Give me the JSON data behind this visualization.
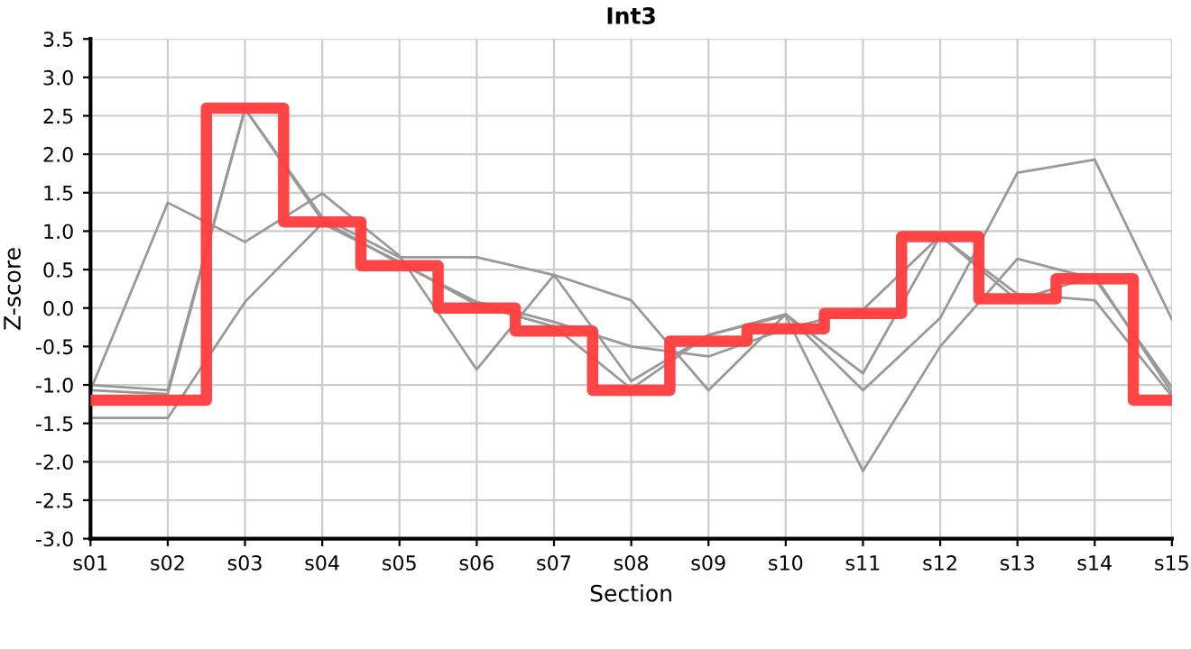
{
  "chart_data": {
    "type": "line",
    "title": "Int3",
    "xlabel": "Section",
    "ylabel": "Z-score",
    "categories": [
      "s01",
      "s02",
      "s03",
      "s04",
      "s05",
      "s06",
      "s07",
      "s08",
      "s09",
      "s10",
      "s11",
      "s12",
      "s13",
      "s14",
      "s15"
    ],
    "series": [
      {
        "color": "#999999",
        "values": [
          -1.07,
          1.37,
          0.86,
          1.49,
          0.68,
          -0.8,
          0.43,
          -0.95,
          -0.35,
          -0.08,
          -0.85,
          0.94,
          0.18,
          0.1,
          -1.15
        ]
      },
      {
        "color": "#999999",
        "values": [
          -1.0,
          -1.07,
          2.59,
          1.18,
          0.66,
          0.66,
          0.43,
          0.1,
          -1.07,
          -0.08,
          -1.07,
          -0.13,
          1.76,
          1.93,
          -0.15
        ]
      },
      {
        "color": "#999999",
        "values": [
          -1.07,
          -1.12,
          2.59,
          1.14,
          0.58,
          0.08,
          -0.18,
          -0.5,
          -0.63,
          -0.27,
          -0.02,
          0.94,
          0.1,
          0.42,
          -1.1
        ]
      },
      {
        "color": "#999999",
        "values": [
          -1.43,
          -1.43,
          0.08,
          1.1,
          0.6,
          0.04,
          -0.24,
          -1.05,
          -0.35,
          -0.1,
          -2.12,
          -0.5,
          0.64,
          0.38,
          -1.03
        ]
      },
      {
        "type": "step",
        "color": "#ff3b3b",
        "values": [
          -1.2,
          -1.2,
          2.6,
          1.12,
          0.55,
          0.0,
          -0.3,
          -1.07,
          -0.43,
          -0.27,
          -0.07,
          0.93,
          0.12,
          0.38,
          -1.2
        ]
      }
    ],
    "ylim": [
      -3.0,
      3.5
    ],
    "yticks": [
      {
        "value": -3.0,
        "label": "-3.0"
      },
      {
        "value": -2.5,
        "label": "-2.5"
      },
      {
        "value": -2.0,
        "label": "-2.0"
      },
      {
        "value": -1.5,
        "label": "-1.5"
      },
      {
        "value": -1.0,
        "label": "-1.0"
      },
      {
        "value": -0.5,
        "label": "-0.5"
      },
      {
        "value": 0.0,
        "label": "0.0"
      },
      {
        "value": 0.5,
        "label": "0.5"
      },
      {
        "value": 1.0,
        "label": "1.0"
      },
      {
        "value": 1.5,
        "label": "1.5"
      },
      {
        "value": 2.0,
        "label": "2.0"
      },
      {
        "value": 2.5,
        "label": "2.5"
      },
      {
        "value": 3.0,
        "label": "3.0"
      },
      {
        "value": 3.5,
        "label": "3.5"
      }
    ],
    "grid": true,
    "marker": "none",
    "line_style": "solid"
  }
}
